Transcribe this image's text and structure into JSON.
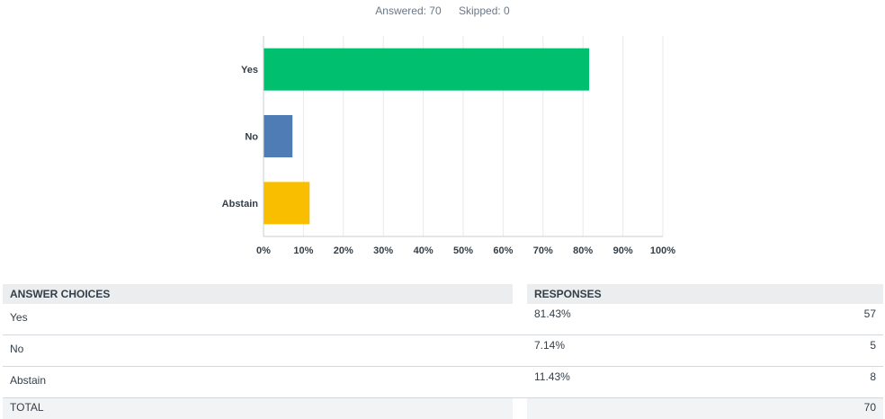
{
  "summary": {
    "answered": "Answered: 70",
    "skipped": "Skipped: 0"
  },
  "chart_data": {
    "type": "bar",
    "orientation": "horizontal",
    "categories": [
      "Yes",
      "No",
      "Abstain"
    ],
    "values": [
      81.43,
      7.14,
      11.43
    ],
    "xlim": [
      0,
      100
    ],
    "x_ticks": [
      "0%",
      "10%",
      "20%",
      "30%",
      "40%",
      "50%",
      "60%",
      "70%",
      "80%",
      "90%",
      "100%"
    ],
    "grid": true,
    "colors": [
      "#00bf6f",
      "#507cb6",
      "#f9be00"
    ]
  },
  "table": {
    "headers": {
      "choices": "ANSWER CHOICES",
      "responses": "RESPONSES"
    },
    "rows": [
      {
        "choice": "Yes",
        "percent": "81.43%",
        "count": "57"
      },
      {
        "choice": "No",
        "percent": "7.14%",
        "count": "5"
      },
      {
        "choice": "Abstain",
        "percent": "11.43%",
        "count": "8"
      }
    ],
    "total_label": "TOTAL",
    "total_value": "70"
  }
}
